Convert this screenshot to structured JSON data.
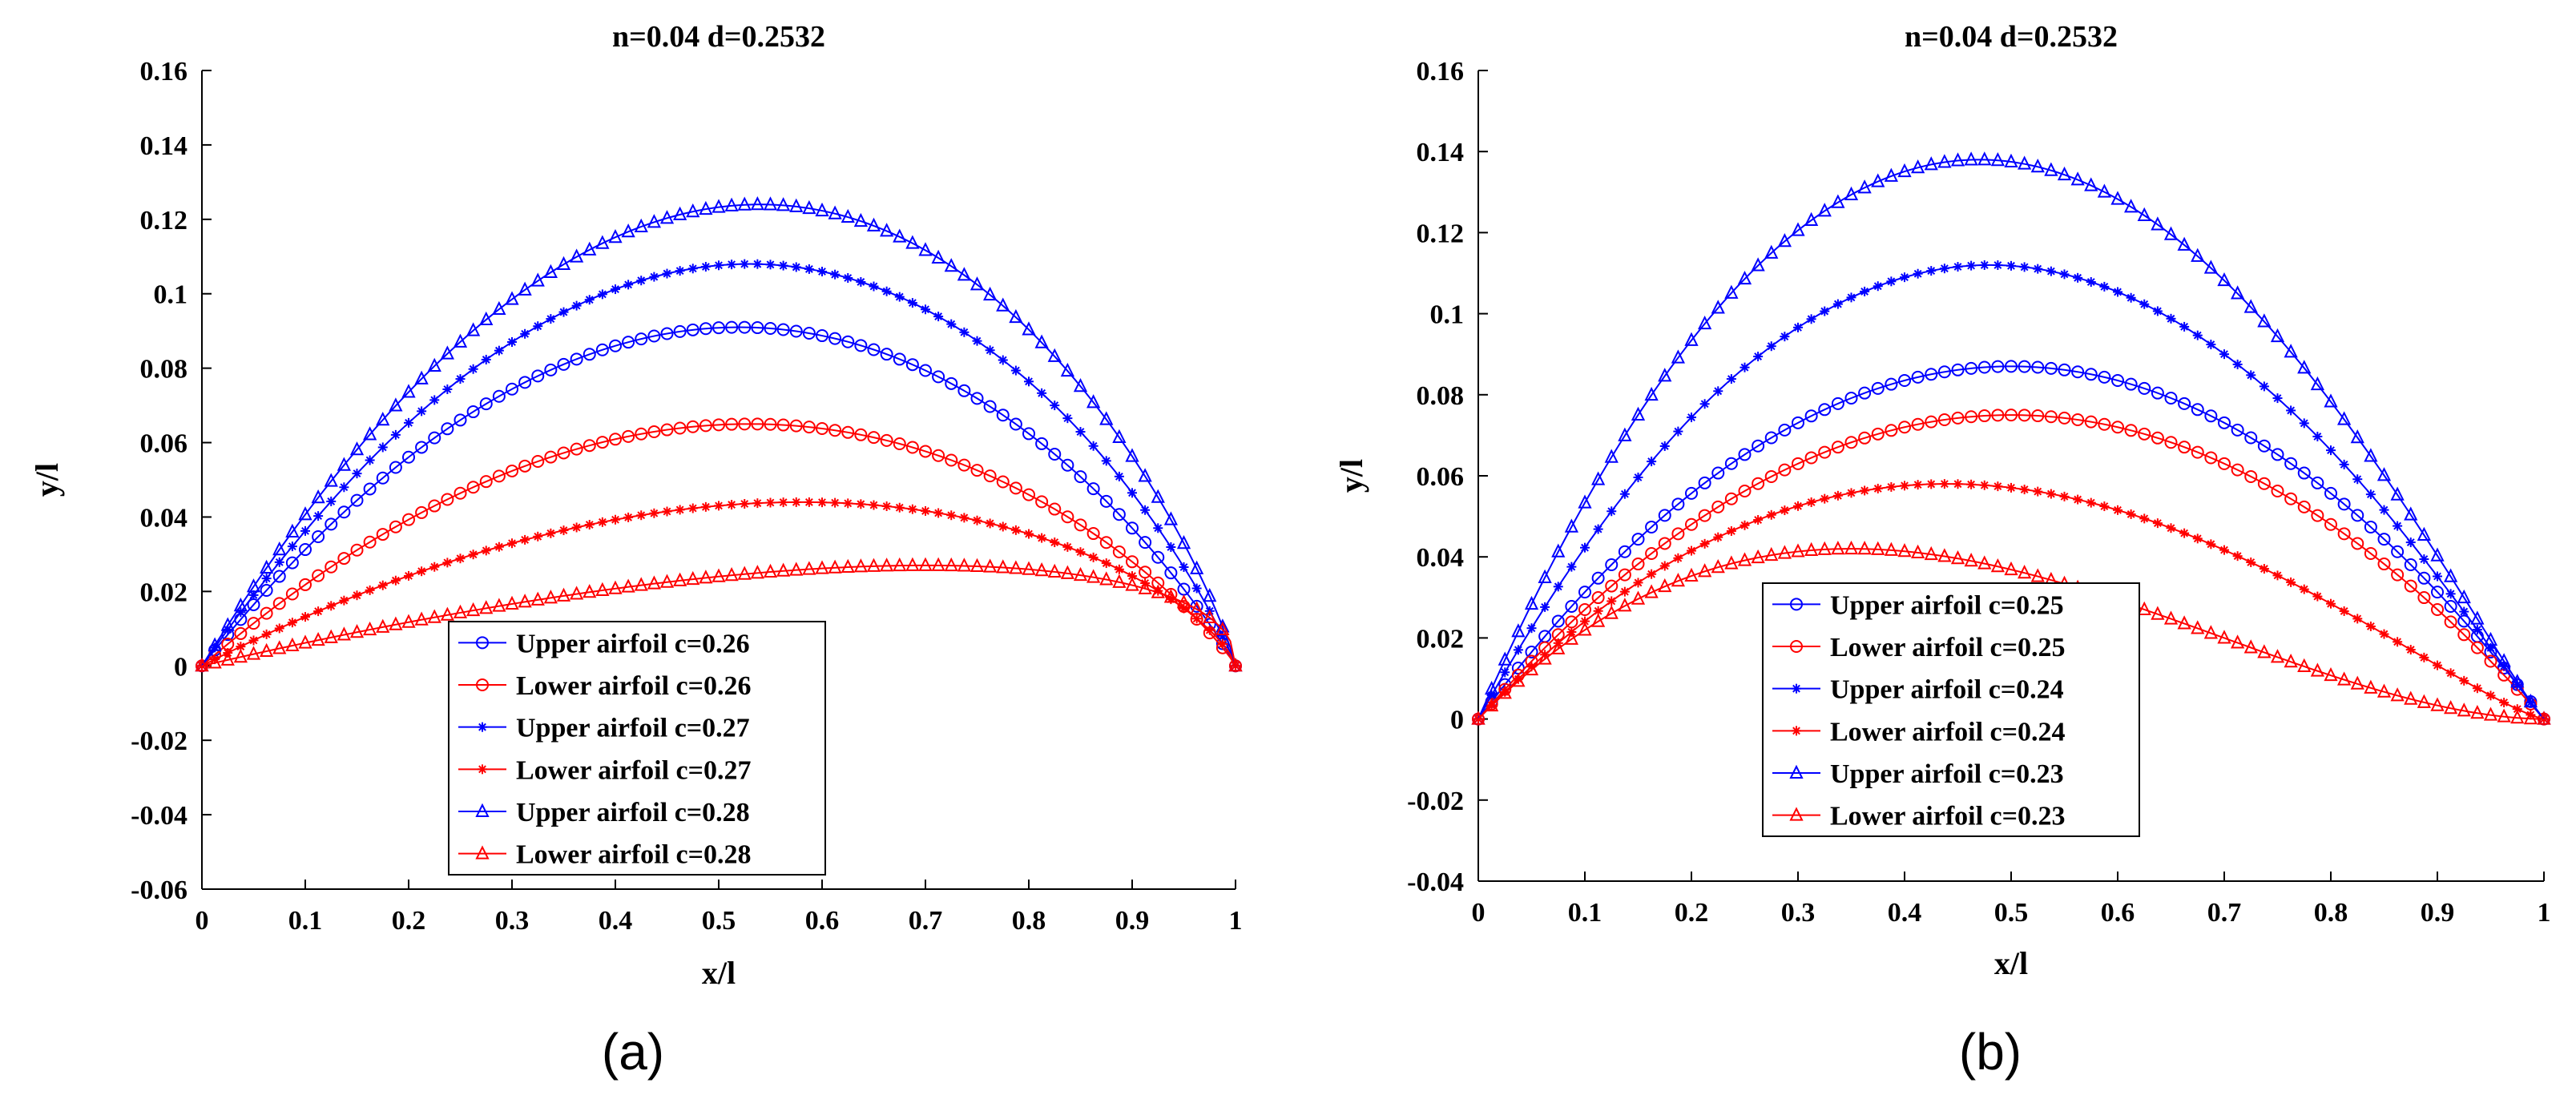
{
  "chart_data": [
    {
      "type": "line",
      "panel_label": "(a)",
      "title": "n=0.04 d=0.2532",
      "xlabel": "x/l",
      "ylabel": "y/l",
      "xlim": [
        0,
        1
      ],
      "ylim": [
        -0.06,
        0.16
      ],
      "xticks": [
        "0",
        "0.1",
        "0.2",
        "0.3",
        "0.4",
        "0.5",
        "0.6",
        "0.7",
        "0.8",
        "0.9",
        "1"
      ],
      "yticks": [
        "-0.06",
        "-0.04",
        "-0.02",
        "0",
        "0.02",
        "0.04",
        "0.06",
        "0.08",
        "0.1",
        "0.12",
        "0.14",
        "0.16"
      ],
      "grid": false,
      "legend_position": "bottom-center",
      "series": [
        {
          "name": "Upper airfoil c=0.26",
          "color": "#0000ff",
          "marker": "circle",
          "peak_x": 0.52,
          "peak_y": 0.091
        },
        {
          "name": "Lower airfoil c=0.26",
          "color": "#ff0000",
          "marker": "circle",
          "peak_x": 0.53,
          "peak_y": 0.065
        },
        {
          "name": "Upper airfoil c=0.27",
          "color": "#0000ff",
          "marker": "asterisk",
          "peak_x": 0.53,
          "peak_y": 0.108
        },
        {
          "name": "Lower airfoil c=0.27",
          "color": "#ff0000",
          "marker": "asterisk",
          "peak_x": 0.58,
          "peak_y": 0.044
        },
        {
          "name": "Upper airfoil c=0.28",
          "color": "#0000ff",
          "marker": "triangle",
          "peak_x": 0.54,
          "peak_y": 0.124
        },
        {
          "name": "Lower airfoil c=0.28",
          "color": "#ff0000",
          "marker": "triangle",
          "peak_x": 0.7,
          "peak_y": 0.027
        }
      ]
    },
    {
      "type": "line",
      "panel_label": "(b)",
      "title": "n=0.04 d=0.2532",
      "xlabel": "x/l",
      "ylabel": "y/l",
      "xlim": [
        0,
        1
      ],
      "ylim": [
        -0.04,
        0.16
      ],
      "xticks": [
        "0",
        "0.1",
        "0.2",
        "0.3",
        "0.4",
        "0.5",
        "0.6",
        "0.7",
        "0.8",
        "0.9",
        "1"
      ],
      "yticks": [
        "-0.04",
        "-0.02",
        "0",
        "0.02",
        "0.04",
        "0.06",
        "0.08",
        "0.1",
        "0.12",
        "0.14",
        "0.16"
      ],
      "grid": false,
      "legend_position": "bottom-center",
      "series": [
        {
          "name": "Upper airfoil c=0.25",
          "color": "#0000ff",
          "marker": "circle",
          "peak_x": 0.5,
          "peak_y": 0.087
        },
        {
          "name": "Lower airfoil c=0.25",
          "color": "#ff0000",
          "marker": "circle",
          "peak_x": 0.5,
          "peak_y": 0.075
        },
        {
          "name": "Upper airfoil c=0.24",
          "color": "#0000ff",
          "marker": "asterisk",
          "peak_x": 0.48,
          "peak_y": 0.112
        },
        {
          "name": "Lower airfoil c=0.24",
          "color": "#ff0000",
          "marker": "asterisk",
          "peak_x": 0.44,
          "peak_y": 0.058
        },
        {
          "name": "Upper airfoil c=0.23",
          "color": "#0000ff",
          "marker": "triangle",
          "peak_x": 0.47,
          "peak_y": 0.138
        },
        {
          "name": "Lower airfoil c=0.23",
          "color": "#ff0000",
          "marker": "triangle",
          "peak_x": 0.35,
          "peak_y": 0.042
        }
      ]
    }
  ]
}
